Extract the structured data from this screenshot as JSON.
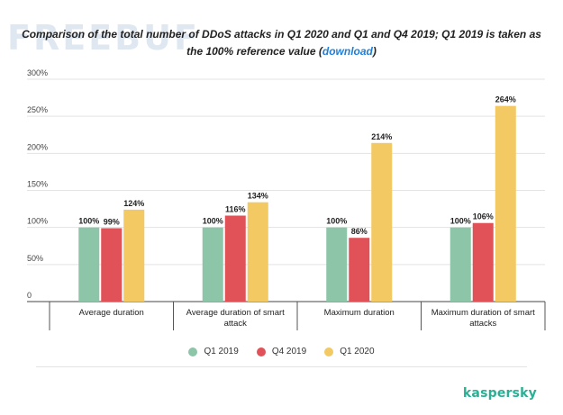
{
  "watermark": "FREEBUF",
  "title": {
    "text": "Comparison of the total number of DDoS attacks in Q1 2020 and Q1 and Q4 2019; Q1 2019 is taken as the 100% reference value (",
    "link": "download",
    "after": ")"
  },
  "brand": "kaspersky",
  "colors": {
    "q1_2019": "#8cc5a7",
    "q4_2019": "#e05257",
    "q1_2020": "#f2c962",
    "grid": "#e3e3e3",
    "axis": "#444444"
  },
  "chart_data": {
    "type": "bar",
    "y_ticks": [
      "300%",
      "250%",
      "200%",
      "150%",
      "100%",
      "50%",
      "0"
    ],
    "ylim": [
      0,
      300
    ],
    "grid": true,
    "legend_position": "bottom",
    "categories": [
      [
        "Average duration"
      ],
      [
        "Average duration of smart",
        "attack"
      ],
      [
        "Maximum duration"
      ],
      [
        "Maximum duration of smart",
        "attacks"
      ]
    ],
    "series": [
      {
        "name": "Q1 2019",
        "values": [
          100,
          100,
          100,
          100
        ],
        "labels": [
          "100%",
          "100%",
          "100%",
          "100%"
        ]
      },
      {
        "name": "Q4 2019",
        "values": [
          99,
          116,
          86,
          106
        ],
        "labels": [
          "99%",
          "116%",
          "86%",
          "106%"
        ]
      },
      {
        "name": "Q1 2020",
        "values": [
          124,
          134,
          214,
          264
        ],
        "labels": [
          "124%",
          "134%",
          "214%",
          "264%"
        ]
      }
    ]
  }
}
